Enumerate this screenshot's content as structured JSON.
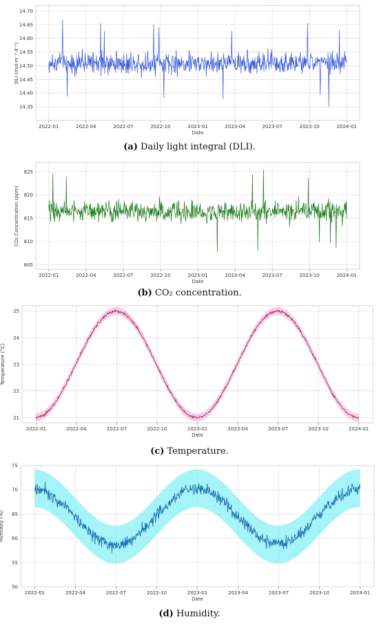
{
  "charts": [
    {
      "type": "line",
      "caption_letter": "(a)",
      "caption_text": " Daily light integral (DLI).",
      "xlabel": "Date",
      "ylabel": "DLI (mol·m⁻²·d⁻¹)",
      "ylim": [
        14.3,
        14.72
      ],
      "yticks": [
        "14.35",
        "14.40",
        "14.45",
        "14.50",
        "14.55",
        "14.60",
        "14.65",
        "14.70"
      ],
      "ytick_values": [
        14.35,
        14.4,
        14.45,
        14.5,
        14.55,
        14.6,
        14.65,
        14.7
      ],
      "xticks": [
        "2022-01",
        "2022-04",
        "2022-07",
        "2022-10",
        "2023-01",
        "2023-04",
        "2023-07",
        "2023-10",
        "2024-01"
      ],
      "xrange_days": [
        0,
        730
      ],
      "series": [
        {
          "color": "#3355dd",
          "shape": "noise",
          "mean": 14.51,
          "amplitude": 0.08,
          "extremes": [
            14.33,
            14.71
          ]
        }
      ],
      "grid": true
    },
    {
      "type": "line",
      "caption_letter": "(b)",
      "caption_text": " CO₂ concentration.",
      "xlabel": "Date",
      "ylabel": "CO₂ Concentration (ppm)",
      "ylim": [
        804,
        827
      ],
      "yticks": [
        "805",
        "810",
        "815",
        "820",
        "825"
      ],
      "ytick_values": [
        805,
        810,
        815,
        820,
        825
      ],
      "xticks": [
        "2022-01",
        "2022-04",
        "2022-07",
        "2022-10",
        "2023-01",
        "2023-04",
        "2023-07",
        "2023-10",
        "2024-01"
      ],
      "xrange_days": [
        0,
        730
      ],
      "series": [
        {
          "color": "#1a7a1a",
          "shape": "noise",
          "mean": 816.5,
          "amplitude": 4.5,
          "extremes": [
            805.5,
            827
          ]
        }
      ],
      "grid": true
    },
    {
      "type": "line",
      "caption_letter": "(c)",
      "caption_text": " Temperature.",
      "xlabel": "Date",
      "ylabel": "Temperature (°C)",
      "ylim": [
        20.8,
        25.2
      ],
      "yticks": [
        "21",
        "22",
        "23",
        "24",
        "25"
      ],
      "ytick_values": [
        21,
        22,
        23,
        24,
        25
      ],
      "xticks": [
        "2022-01",
        "2022-04",
        "2022-07",
        "2022-10",
        "2023-01",
        "2023-04",
        "2023-07",
        "2023-10",
        "2024-01"
      ],
      "xrange_days": [
        0,
        730
      ],
      "series": [
        {
          "color": "#8b1a1a",
          "band_color": "#f6b6e6",
          "shape": "seasonal",
          "mean": 23.0,
          "amplitude": 2.0,
          "peak_day": 181,
          "noise": 0.05
        }
      ],
      "grid": true
    },
    {
      "type": "line",
      "caption_letter": "(d)",
      "caption_text": " Humidity.",
      "xlabel": "Date",
      "ylabel": "Humidity (%)",
      "ylim": [
        50,
        75
      ],
      "yticks": [
        "50",
        "55",
        "60",
        "65",
        "70",
        "75"
      ],
      "ytick_values": [
        50,
        55,
        60,
        65,
        70,
        75
      ],
      "xticks": [
        "2022-01",
        "2022-04",
        "2022-07",
        "2022-10",
        "2023-01",
        "2023-04",
        "2023-07",
        "2023-10",
        "2024-01"
      ],
      "xrange_days": [
        0,
        730
      ],
      "series": [
        {
          "color": "#1f6fb4",
          "band_color": "#7ff0f4",
          "shape": "seasonal",
          "mean": 64.5,
          "amplitude": -5.8,
          "peak_day": 181,
          "noise": 1.3
        }
      ],
      "grid": true
    }
  ]
}
